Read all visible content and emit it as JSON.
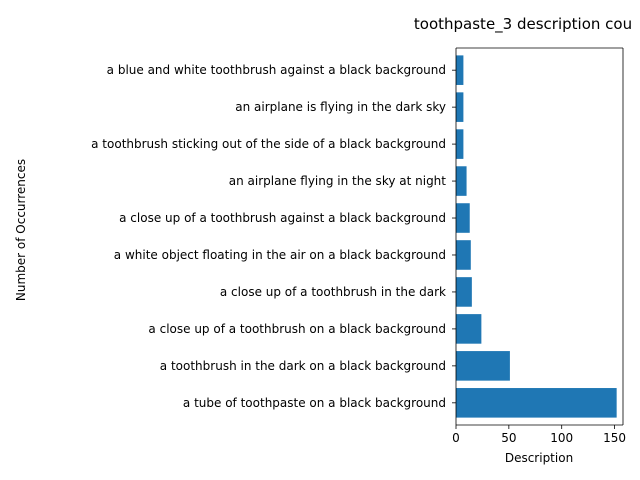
{
  "chart_data": {
    "type": "bar",
    "orientation": "horizontal",
    "title": "toothpaste_3 description cou",
    "xlabel": "Description",
    "ylabel": "Number of Occurrences",
    "xlim": [
      0,
      158
    ],
    "xticks": [
      0,
      50,
      100,
      150
    ],
    "grid": false,
    "bar_color": "#1f77b4",
    "categories": [
      "a tube of toothpaste on a black background",
      "a toothbrush in the dark on a black background",
      "a close up of a toothbrush on a black background",
      "a close up of a toothbrush in the dark",
      "a white object floating in the air on a black background",
      "a close up of a toothbrush against a black background",
      "an airplane flying in the sky at night",
      "a toothbrush sticking out of the side of a black background",
      "an airplane is flying in the dark sky",
      "a blue and white toothbrush against a black background"
    ],
    "values": [
      152,
      51,
      24,
      15,
      14,
      13,
      10,
      7,
      7,
      7
    ]
  }
}
